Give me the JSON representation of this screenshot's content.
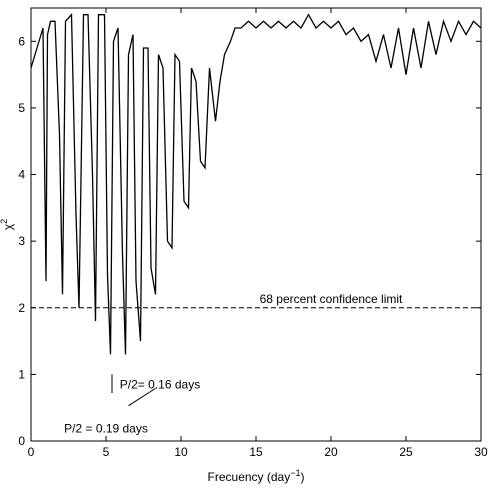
{
  "chart_data": {
    "type": "line",
    "xlabel": "Frecuency (day",
    "xlabel_sup": "−1",
    "xlabel_close": ")",
    "ylabel": "χ",
    "ylabel_sup": "2",
    "xlim": [
      0,
      30
    ],
    "ylim": [
      0,
      6.5
    ],
    "xticks": [
      0,
      5,
      10,
      15,
      20,
      25,
      30
    ],
    "yticks": [
      0,
      1,
      2,
      3,
      4,
      5,
      6
    ],
    "grid": false,
    "legend": "none",
    "series": [
      {
        "style": "solid",
        "color": "#000000",
        "x": [
          0.0,
          0.4,
          0.8,
          1.0,
          1.1,
          1.3,
          1.6,
          1.9,
          2.1,
          2.3,
          2.7,
          3.0,
          3.2,
          3.5,
          3.8,
          4.1,
          4.3,
          4.5,
          4.9,
          5.1,
          5.3,
          5.5,
          5.8,
          6.1,
          6.3,
          6.5,
          6.8,
          7.0,
          7.3,
          7.5,
          7.8,
          8.0,
          8.3,
          8.5,
          8.8,
          9.1,
          9.4,
          9.6,
          9.9,
          10.2,
          10.5,
          10.7,
          11.0,
          11.3,
          11.6,
          11.9,
          12.3,
          12.6,
          12.9,
          13.3,
          13.6,
          14.0,
          14.5,
          15.0,
          15.5,
          16.0,
          16.5,
          17.0,
          17.5,
          18.0,
          18.5,
          19.0,
          19.5,
          20.0,
          20.5,
          21.0,
          21.5,
          22.0,
          22.5,
          23.0,
          23.5,
          24.0,
          24.5,
          25.0,
          25.5,
          26.0,
          26.5,
          27.0,
          27.5,
          28.0,
          28.5,
          29.0,
          29.5,
          30.0
        ],
        "y": [
          5.6,
          5.9,
          6.2,
          2.4,
          6.1,
          6.3,
          6.3,
          4.6,
          2.2,
          6.3,
          6.4,
          3.4,
          2.0,
          6.4,
          6.4,
          4.0,
          1.8,
          6.4,
          6.4,
          2.5,
          1.3,
          6.0,
          6.2,
          2.8,
          1.3,
          5.8,
          6.1,
          2.4,
          1.5,
          5.9,
          5.9,
          2.6,
          2.2,
          5.8,
          5.6,
          3.0,
          2.9,
          5.8,
          5.7,
          3.6,
          3.5,
          5.6,
          5.4,
          4.2,
          4.1,
          5.6,
          4.8,
          5.4,
          5.8,
          6.0,
          6.2,
          6.2,
          6.3,
          6.2,
          6.3,
          6.2,
          6.3,
          6.2,
          6.3,
          6.2,
          6.4,
          6.2,
          6.3,
          6.2,
          6.3,
          6.1,
          6.2,
          6.0,
          6.1,
          5.7,
          6.1,
          5.6,
          6.2,
          5.5,
          6.2,
          5.6,
          6.3,
          5.8,
          6.3,
          6.0,
          6.3,
          6.1,
          6.3,
          6.2
        ]
      },
      {
        "style": "dashed",
        "color": "#000000",
        "x": [
          0,
          30
        ],
        "y": [
          2,
          2
        ]
      }
    ],
    "annotations": [
      {
        "text": "68 percent confidence limit",
        "x": 20.0,
        "y": 2.07
      },
      {
        "text": "P/2= 0.16 days",
        "x": 8.6,
        "y": 0.79
      },
      {
        "text": "P/2 = 0.19 days",
        "x": 5.0,
        "y": 0.13
      }
    ],
    "pointers": [
      {
        "x1": 5.4,
        "y1": 1.0,
        "x2": 5.4,
        "y2": 0.72
      },
      {
        "x1": 6.5,
        "y1": 0.53,
        "x2": 8.3,
        "y2": 0.79
      }
    ]
  }
}
